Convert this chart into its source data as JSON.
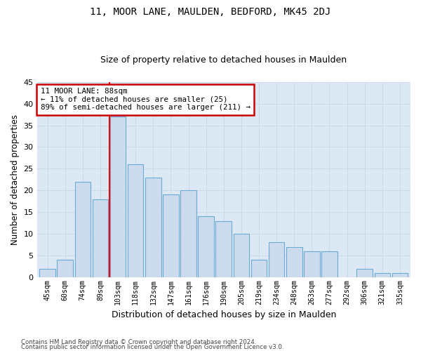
{
  "title": "11, MOOR LANE, MAULDEN, BEDFORD, MK45 2DJ",
  "subtitle": "Size of property relative to detached houses in Maulden",
  "xlabel": "Distribution of detached houses by size in Maulden",
  "ylabel": "Number of detached properties",
  "categories": [
    "45sqm",
    "60sqm",
    "74sqm",
    "89sqm",
    "103sqm",
    "118sqm",
    "132sqm",
    "147sqm",
    "161sqm",
    "176sqm",
    "190sqm",
    "205sqm",
    "219sqm",
    "234sqm",
    "248sqm",
    "263sqm",
    "277sqm",
    "292sqm",
    "306sqm",
    "321sqm",
    "335sqm"
  ],
  "values": [
    2,
    4,
    22,
    18,
    37,
    26,
    23,
    19,
    20,
    14,
    13,
    10,
    4,
    8,
    7,
    6,
    6,
    0,
    2,
    1,
    1
  ],
  "bar_color": "#ccdcee",
  "bar_edge_color": "#6aaad4",
  "red_line_x": 3.5,
  "red_line_label": "11 MOOR LANE: 88sqm",
  "annotation_line1": "← 11% of detached houses are smaller (25)",
  "annotation_line2": "89% of semi-detached houses are larger (211) →",
  "annotation_box_facecolor": "#ffffff",
  "annotation_box_edgecolor": "#cc0000",
  "grid_color": "#ccd9e8",
  "background_color": "#dce9f5",
  "ylim": [
    0,
    45
  ],
  "yticks": [
    0,
    5,
    10,
    15,
    20,
    25,
    30,
    35,
    40,
    45
  ],
  "title_fontsize": 10,
  "subtitle_fontsize": 9,
  "footer1": "Contains HM Land Registry data © Crown copyright and database right 2024.",
  "footer2": "Contains public sector information licensed under the Open Government Licence v3.0."
}
